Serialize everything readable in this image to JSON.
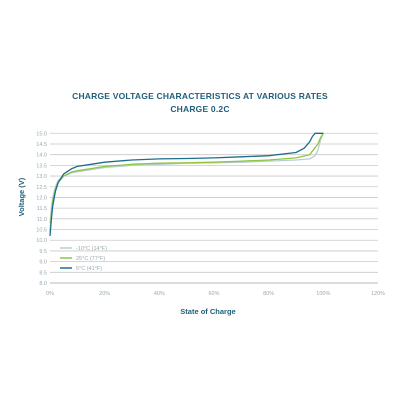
{
  "chart_data": {
    "type": "line",
    "title": "CHARGE VOLTAGE CHARACTERISTICS AT VARIOUS RATES",
    "subtitle": "CHARGE 0.2C",
    "xlabel": "State of Charge",
    "ylabel": "Voltage (V)",
    "xlim": [
      0,
      120
    ],
    "ylim": [
      8.0,
      15.2
    ],
    "x_ticks": [
      "0%",
      "20%",
      "40%",
      "60%",
      "80%",
      "100%",
      "120%"
    ],
    "y_ticks": [
      "8.0",
      "8.5",
      "9.0",
      "9.5",
      "10.0",
      "10.5",
      "11.0",
      "11.5",
      "12.0",
      "12.5",
      "13.0",
      "13.5",
      "14.0",
      "14.5",
      "15.0"
    ],
    "grid": true,
    "legend_position": "bottom-left",
    "series": [
      {
        "name": "-10°C (14°F)",
        "color": "#b9cdd6",
        "x": [
          0,
          0.5,
          1,
          2,
          3,
          5,
          8,
          10,
          15,
          20,
          30,
          40,
          50,
          60,
          70,
          80,
          90,
          95,
          97,
          98,
          99,
          100
        ],
        "y": [
          10.8,
          11.5,
          12.0,
          12.5,
          12.8,
          13.0,
          13.15,
          13.2,
          13.3,
          13.4,
          13.5,
          13.55,
          13.6,
          13.62,
          13.65,
          13.7,
          13.75,
          13.8,
          13.95,
          14.2,
          14.7,
          15.0
        ]
      },
      {
        "name": "25°C (77°F)",
        "color": "#8ec63f",
        "x": [
          0,
          0.5,
          1,
          2,
          3,
          5,
          8,
          10,
          15,
          20,
          30,
          40,
          50,
          60,
          70,
          80,
          90,
          95,
          98,
          99,
          100
        ],
        "y": [
          10.4,
          11.2,
          11.8,
          12.4,
          12.7,
          13.0,
          13.2,
          13.25,
          13.35,
          13.45,
          13.55,
          13.6,
          13.62,
          13.65,
          13.7,
          13.75,
          13.85,
          14.0,
          14.5,
          14.8,
          15.0
        ]
      },
      {
        "name": "5°C (41°F)",
        "color": "#1f6d8c",
        "x": [
          0,
          0.5,
          1,
          2,
          3,
          5,
          8,
          10,
          15,
          20,
          30,
          40,
          50,
          60,
          70,
          80,
          90,
          93,
          95,
          96,
          97,
          98,
          100
        ],
        "y": [
          10.2,
          11.0,
          11.6,
          12.3,
          12.7,
          13.1,
          13.35,
          13.45,
          13.55,
          13.65,
          13.75,
          13.8,
          13.82,
          13.85,
          13.9,
          13.95,
          14.1,
          14.3,
          14.6,
          14.85,
          15.0,
          15.0,
          15.0
        ]
      }
    ]
  }
}
